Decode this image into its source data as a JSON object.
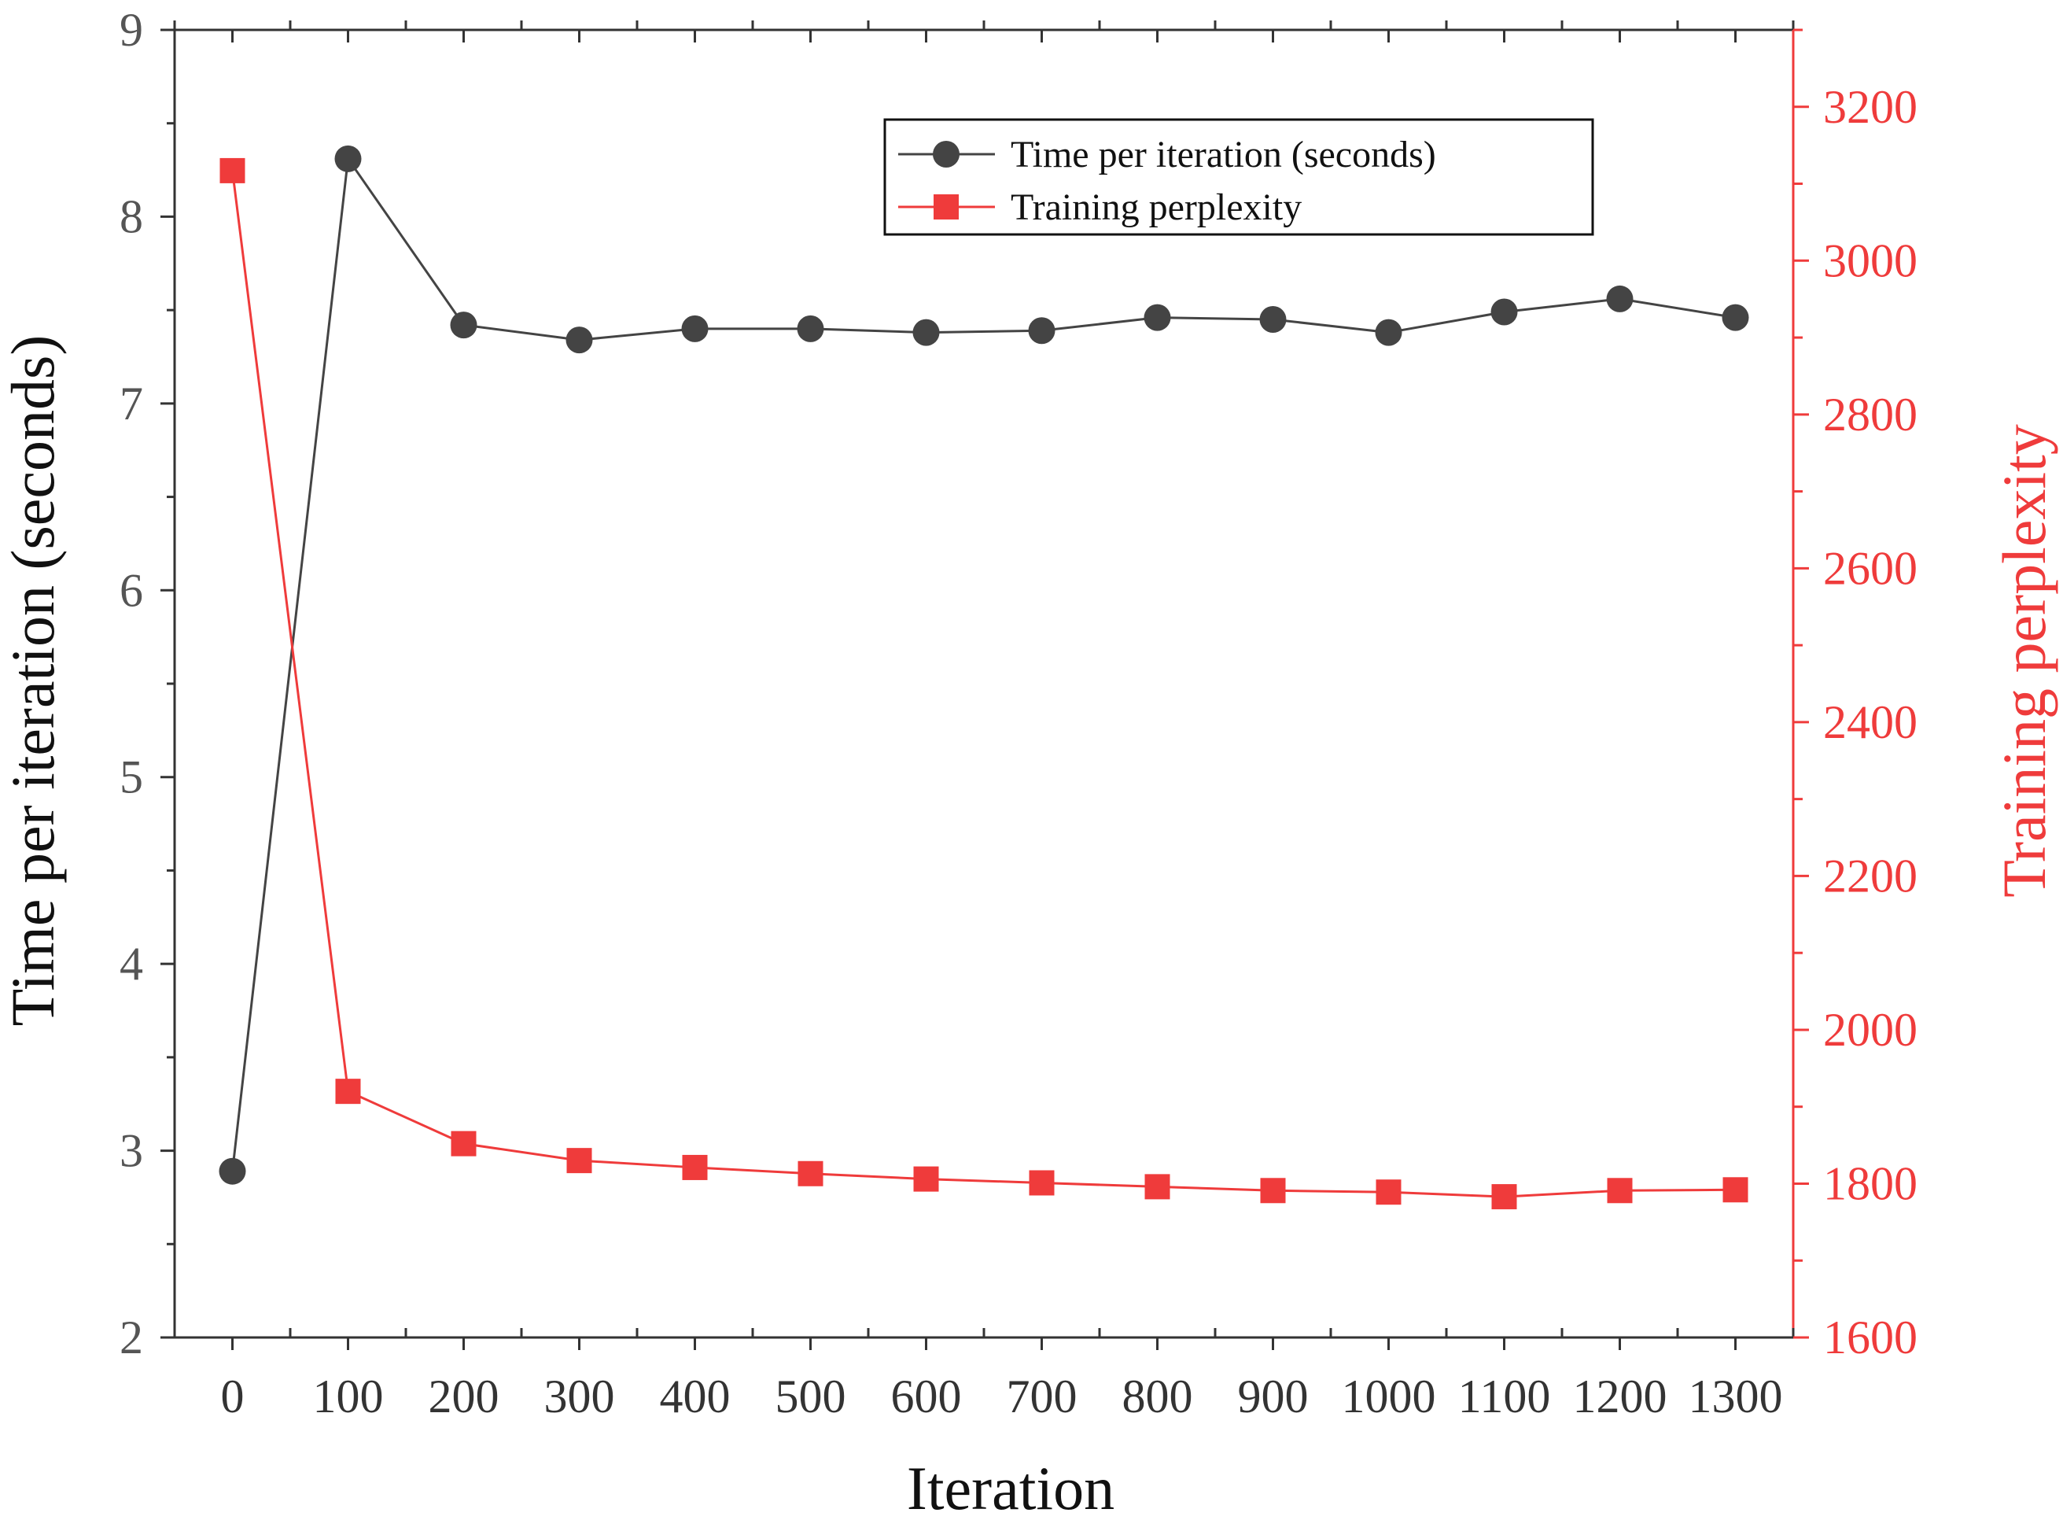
{
  "chart_data": {
    "type": "line",
    "x": [
      0,
      100,
      200,
      300,
      400,
      500,
      600,
      700,
      800,
      900,
      1000,
      1100,
      1200,
      1300
    ],
    "xlabel": "Iteration",
    "xlim": [
      -50,
      1350
    ],
    "x_ticks": [
      0,
      100,
      200,
      300,
      400,
      500,
      600,
      700,
      800,
      900,
      1000,
      1100,
      1200,
      1300
    ],
    "x_tick_labels": [
      "0",
      "100",
      "200",
      "300",
      "400",
      "500",
      "600",
      "700",
      "800",
      "900",
      "1000",
      "1100",
      "1200",
      "1300"
    ],
    "y_left": {
      "label": "Time per iteration (seconds)",
      "ylim": [
        2,
        9
      ],
      "ticks": [
        2,
        3,
        4,
        5,
        6,
        7,
        8,
        9
      ],
      "tick_labels": [
        "2",
        "3",
        "4",
        "5",
        "6",
        "7",
        "8",
        "9"
      ]
    },
    "y_right": {
      "label": "Training perplexity",
      "ylim": [
        1600,
        3300
      ],
      "ticks": [
        1600,
        1800,
        2000,
        2200,
        2400,
        2600,
        2800,
        3000,
        3200
      ],
      "tick_labels": [
        "1600",
        "1800",
        "2000",
        "2200",
        "2400",
        "2600",
        "2800",
        "3000",
        "3200"
      ]
    },
    "series": [
      {
        "name": "Time per iteration (seconds)",
        "axis": "left",
        "marker": "circle",
        "color": "#444444",
        "values": [
          2.89,
          8.31,
          7.42,
          7.34,
          7.4,
          7.4,
          7.38,
          7.39,
          7.46,
          7.45,
          7.38,
          7.49,
          7.56,
          7.46
        ]
      },
      {
        "name": "Training perplexity",
        "axis": "right",
        "marker": "square",
        "color": "#ef3b3b",
        "values": [
          3117,
          1920,
          1852,
          1830,
          1821,
          1813,
          1806,
          1801,
          1796,
          1791,
          1789,
          1783,
          1791,
          1792
        ]
      }
    ],
    "legend": {
      "position": "top-center",
      "entries": [
        "Time per iteration (seconds)",
        "Training perplexity"
      ]
    }
  }
}
